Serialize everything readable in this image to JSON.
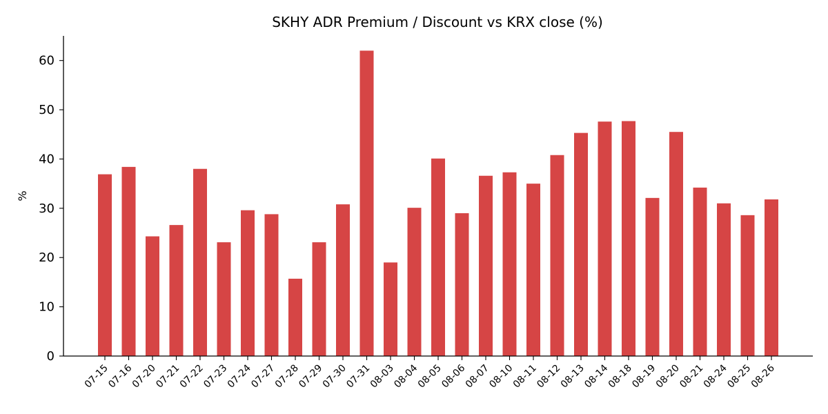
{
  "chart_data": {
    "type": "bar",
    "title": "SKHY ADR Premium / Discount vs KRX close (%)",
    "xlabel": "",
    "ylabel": "%",
    "ylim": [
      0,
      65
    ],
    "yticks": [
      0,
      10,
      20,
      30,
      40,
      50,
      60
    ],
    "grid": false,
    "bar_color": "#d64545",
    "categories": [
      "07-15",
      "07-16",
      "07-20",
      "07-21",
      "07-22",
      "07-23",
      "07-24",
      "07-27",
      "07-28",
      "07-29",
      "07-30",
      "07-31",
      "08-03",
      "08-04",
      "08-05",
      "08-06",
      "08-07",
      "08-10",
      "08-11",
      "08-12",
      "08-13",
      "08-14",
      "08-18",
      "08-19",
      "08-20",
      "08-21",
      "08-24",
      "08-25",
      "08-26"
    ],
    "values": [
      36.9,
      38.4,
      24.3,
      26.6,
      38.0,
      23.1,
      29.6,
      28.8,
      15.7,
      23.1,
      30.8,
      62.0,
      19.0,
      30.1,
      40.1,
      29.0,
      36.6,
      37.3,
      35.0,
      40.8,
      45.3,
      47.6,
      47.7,
      32.1,
      45.5,
      34.2,
      31.0,
      28.6,
      31.8
    ]
  }
}
